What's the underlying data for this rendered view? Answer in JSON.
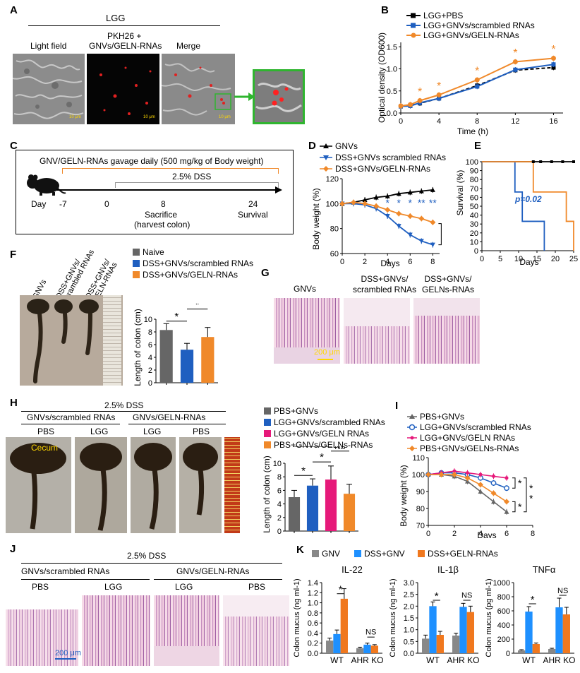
{
  "panels": {
    "A": "A",
    "B": "B",
    "C": "C",
    "D": "D",
    "E": "E",
    "F": "F",
    "G": "G",
    "H": "H",
    "I": "I",
    "J": "J",
    "K": "K"
  },
  "A": {
    "title": "LGG",
    "col1": "Light field",
    "col2a": "PKH26 +",
    "col2b": "GNVs/GELN-RNAs",
    "col3": "Merge",
    "scale": "10 μm"
  },
  "B": {
    "legend": [
      "LGG+PBS",
      "LGG+GNVs/scrambled RNAs",
      "LGG+GNVs/GELN-RNAs"
    ],
    "ylabel": "Optical density (OD600)",
    "xlabel": "Time (h)",
    "star": "*"
  },
  "C": {
    "gavage": "GNV/GELN-RNAs gavage daily (500 mg/kg of Body weight)",
    "dss": "2.5% DSS",
    "day": "Day",
    "d0": "-7",
    "d1": "0",
    "d2": "8",
    "d3": "24",
    "sac1": "Sacrifice",
    "sac2": "(harvest colon)",
    "surv": "Survival"
  },
  "D": {
    "legend": [
      "GNVs",
      "DSS+GNVs scrambled RNAs",
      "DSS+GNVs/GELN-RNAs"
    ],
    "ylabel": "Body weight (%)",
    "xlabel": "Days"
  },
  "E": {
    "ylabel": "Survival (%)",
    "xlabel": "Days",
    "p": "p=0.02"
  },
  "F": {
    "lab1": "GNVs",
    "lab2a": "DSS+GNVs/",
    "lab2b": "scrambled RNAs",
    "lab3a": "DSS+GNVs/",
    "lab3b": "GELN-RNAs",
    "legend": [
      "Naive",
      "DSS+GNVs/scrambled RNAs",
      "DSS+GNVs/GELN-RNAs"
    ],
    "ylabel": "Length of colon (cm)"
  },
  "G": {
    "c1": "GNVs",
    "c2a": "DSS+GNVs/",
    "c2b": "scrambled RNAs",
    "c3a": "DSS+GNVs/",
    "c3b": "GELNs-RNAs",
    "scale": "200 μm"
  },
  "H": {
    "title": "2.5% DSS",
    "g1": "GNVs/scrambled RNAs",
    "g2": "GNVs/GELN-RNAs",
    "s1": "PBS",
    "s2": "LGG",
    "s3": "LGG",
    "s4": "PBS",
    "cecum": "Cecum",
    "legend": [
      "PBS+GNVs",
      "LGG+GNVs/scrambled RNAs",
      "LGG+GNVs/GELN RNAs",
      "PBS+GNVs/GELNs-RNAs"
    ],
    "ylabel": "Length of colon (cm)",
    "ns": "NS"
  },
  "I": {
    "legend": [
      "PBS+GNVs",
      "LGG+GNVs/scrambled RNAs",
      "LGG+GNVs/GELN RNAs",
      "PBS+GNVs/GELNs-RNAs"
    ],
    "ylabel": "Body weight (%)",
    "xlabel": "Days"
  },
  "J": {
    "title": "2.5% DSS",
    "g1": "GNVs/scrambled RNAs",
    "g2": "GNVs/GELN-RNAs",
    "s1": "PBS",
    "s2": "LGG",
    "s3": "LGG",
    "s4": "PBS",
    "scale": "200 μm"
  },
  "K": {
    "legend": [
      "GNV",
      "DSS+GNV",
      "DSS+GELN-RNAs"
    ],
    "ns": "NS"
  },
  "chart_data": [
    {
      "id": "B",
      "type": "line",
      "x": [
        0,
        1,
        2,
        4,
        8,
        12,
        16
      ],
      "series": [
        {
          "name": "LGG+PBS",
          "values": [
            0.15,
            0.17,
            0.22,
            0.33,
            0.62,
            0.97,
            1.03
          ],
          "color": "#000000"
        },
        {
          "name": "LGG+GNVs/scrambled RNAs",
          "values": [
            0.15,
            0.16,
            0.23,
            0.33,
            0.6,
            0.98,
            1.1
          ],
          "color": "#1f5fc0"
        },
        {
          "name": "LGG+GNVs/GELN-RNAs",
          "values": [
            0.16,
            0.19,
            0.28,
            0.41,
            0.75,
            1.16,
            1.24
          ],
          "color": "#f0892a"
        }
      ],
      "xticks": [
        0,
        4,
        8,
        12,
        16
      ],
      "yticks": [
        0.0,
        0.5,
        1.0,
        1.5
      ],
      "xlim": [
        0,
        17
      ],
      "ylim": [
        0,
        1.6
      ]
    },
    {
      "id": "D",
      "type": "line",
      "x": [
        0,
        1,
        2,
        3,
        4,
        5,
        6,
        7,
        8
      ],
      "series": [
        {
          "name": "GNVs",
          "values": [
            100,
            101,
            103,
            105,
            106,
            108,
            109,
            110,
            111
          ],
          "color": "#000000"
        },
        {
          "name": "DSS+GNVs scrambled RNAs",
          "values": [
            100,
            100,
            99,
            96,
            90,
            82,
            75,
            70,
            67
          ],
          "color": "#1f5fc0"
        },
        {
          "name": "DSS+GNVs/GELN-RNAs",
          "values": [
            100,
            101,
            100,
            98,
            95,
            92,
            90,
            88,
            85
          ],
          "color": "#f0892a"
        }
      ],
      "xticks": [
        0,
        2,
        4,
        6,
        8
      ],
      "yticks": [
        60,
        80,
        100,
        120
      ],
      "ylim": [
        60,
        120
      ]
    },
    {
      "id": "E",
      "type": "line",
      "xticks": [
        0,
        5,
        10,
        15,
        20,
        25
      ],
      "yticks": [
        0,
        10,
        20,
        30,
        40,
        50,
        60,
        70,
        80,
        90,
        100
      ],
      "xlim": [
        0,
        25
      ],
      "ylim": [
        0,
        100
      ],
      "series": [
        {
          "name": "GNVs",
          "values": [
            100,
            100
          ],
          "x": [
            0,
            25
          ],
          "color": "#000000"
        },
        {
          "name": "DSS+GNVs scrambled RNAs",
          "x": [
            0,
            9,
            9,
            11,
            11,
            17,
            17
          ],
          "values": [
            100,
            100,
            66,
            66,
            33,
            33,
            0
          ],
          "color": "#1f5fc0"
        },
        {
          "name": "DSS+GNVs/GELN-RNAs",
          "x": [
            0,
            14,
            14,
            23,
            23,
            25,
            25
          ],
          "values": [
            100,
            100,
            66,
            66,
            33,
            33,
            0
          ],
          "color": "#f0892a"
        }
      ]
    },
    {
      "id": "F",
      "type": "bar",
      "categories": [
        "Naive",
        "DSS+GNVs/scrambled RNAs",
        "DSS+GNVs/GELN-RNAs"
      ],
      "values": [
        8.3,
        5.2,
        7.2
      ],
      "errors": [
        1.0,
        1.0,
        1.5
      ],
      "colors": [
        "#666666",
        "#1f5fc0",
        "#f0892a"
      ],
      "yticks": [
        0,
        2,
        4,
        6,
        8,
        10
      ],
      "ylim": [
        0,
        10
      ]
    },
    {
      "id": "H",
      "type": "bar",
      "categories": [
        "PBS+GNVs",
        "LGG+GNVs/scrambled RNAs",
        "LGG+GNVs/GELN RNAs",
        "PBS+GNVs/GELNs-RNAs"
      ],
      "values": [
        5.0,
        6.7,
        7.6,
        5.5
      ],
      "errors": [
        1.0,
        1.0,
        2.0,
        1.4
      ],
      "colors": [
        "#666666",
        "#1f5fc0",
        "#e6197a",
        "#f0892a"
      ],
      "yticks": [
        0,
        2,
        4,
        6,
        8,
        10
      ],
      "ylim": [
        0,
        10
      ]
    },
    {
      "id": "I",
      "type": "line",
      "x": [
        0,
        1,
        2,
        3,
        4,
        5,
        6
      ],
      "xticks": [
        0,
        2,
        4,
        6,
        8
      ],
      "yticks": [
        70,
        80,
        90,
        100,
        110
      ],
      "ylim": [
        70,
        110
      ],
      "series": [
        {
          "name": "PBS+GNVs",
          "values": [
            100,
            100,
            99,
            96,
            90,
            84,
            78
          ],
          "color": "#666666"
        },
        {
          "name": "LGG+GNVs/scrambled RNAs",
          "values": [
            100,
            101,
            101,
            100,
            98,
            95,
            92
          ],
          "color": "#1f5fc0"
        },
        {
          "name": "LGG+GNVs/GELN RNAs",
          "values": [
            100,
            101,
            102,
            101,
            100,
            99,
            98
          ],
          "color": "#e6197a"
        },
        {
          "name": "PBS+GNVs/GELNs-RNAs",
          "values": [
            100,
            100,
            100,
            98,
            94,
            89,
            84
          ],
          "color": "#f0892a"
        }
      ]
    },
    {
      "id": "K1",
      "type": "bar",
      "title": "IL-22",
      "ylabel": "Colon mucus (ng ml-1)",
      "groups": [
        "WT",
        "AHR KO"
      ],
      "series": [
        {
          "name": "GNV",
          "values": [
            0.25,
            0.1
          ],
          "errors": [
            0.05,
            0.02
          ]
        },
        {
          "name": "DSS+GNV",
          "values": [
            0.38,
            0.17
          ],
          "errors": [
            0.08,
            0.03
          ]
        },
        {
          "name": "DSS+GELN-RNAs",
          "values": [
            1.08,
            0.15
          ],
          "errors": [
            0.2,
            0.02
          ]
        }
      ],
      "yticks": [
        0,
        0.2,
        0.4,
        0.6,
        0.8,
        1.0,
        1.2,
        1.4
      ],
      "ylim": [
        0,
        1.4
      ]
    },
    {
      "id": "K2",
      "type": "bar",
      "title": "IL-1β",
      "ylabel": "Colon mucus (ng ml-1)",
      "groups": [
        "WT",
        "AHR KO"
      ],
      "series": [
        {
          "name": "GNV",
          "values": [
            0.62,
            0.75
          ],
          "errors": [
            0.15,
            0.1
          ]
        },
        {
          "name": "DSS+GNV",
          "values": [
            2.0,
            1.97
          ],
          "errors": [
            0.18,
            0.15
          ]
        },
        {
          "name": "DSS+GELN-RNAs",
          "values": [
            0.78,
            1.75
          ],
          "errors": [
            0.15,
            0.25
          ]
        }
      ],
      "yticks": [
        0,
        0.5,
        1.0,
        1.5,
        2.0,
        2.5,
        3.0
      ],
      "ylim": [
        0,
        3.0
      ]
    },
    {
      "id": "K3",
      "type": "bar",
      "title": "TNFα",
      "ylabel": "Colon mucus (pg ml-1)",
      "groups": [
        "WT",
        "AHR KO"
      ],
      "series": [
        {
          "name": "GNV",
          "values": [
            40,
            60
          ],
          "errors": [
            10,
            10
          ]
        },
        {
          "name": "DSS+GNV",
          "values": [
            590,
            650
          ],
          "errors": [
            70,
            130
          ]
        },
        {
          "name": "DSS+GELN-RNAs",
          "values": [
            130,
            550
          ],
          "errors": [
            15,
            100
          ]
        }
      ],
      "yticks": [
        0,
        200,
        400,
        600,
        800,
        1000
      ],
      "ylim": [
        0,
        1000
      ]
    }
  ]
}
